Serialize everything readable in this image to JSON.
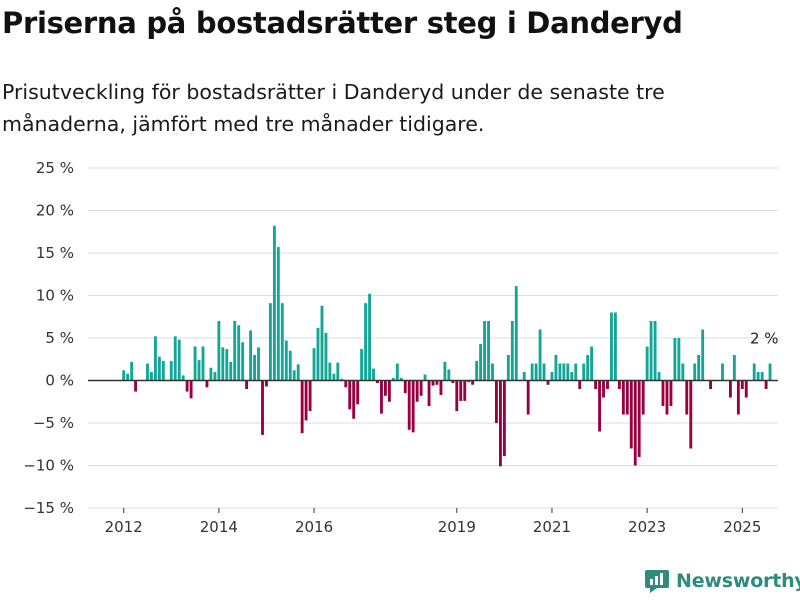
{
  "title": "Priserna på bostadsrätter steg i Danderyd",
  "subtitle": "Prisutveckling för bostadsrätter i Danderyd under de senaste tre månaderna, jämfört med tre månader tidigare.",
  "brand": {
    "name": "Newsworthy",
    "color": "#2e8b7e"
  },
  "colors": {
    "positive": "#13a596",
    "negative": "#98003f",
    "grid": "#dddddd",
    "zero": "#333333"
  },
  "chart_data": {
    "type": "bar",
    "title": "Priserna på bostadsrätter steg i Danderyd",
    "xlabel": "",
    "ylabel": "",
    "ylim": [
      -15,
      25
    ],
    "xlim": [
      2011.25,
      2025.75
    ],
    "y_ticks": [
      -15,
      -10,
      -5,
      0,
      5,
      10,
      15,
      20,
      25
    ],
    "y_tick_labels": [
      "−15 %",
      "−10 %",
      "−5 %",
      "0 %",
      "5 %",
      "10 %",
      "15 %",
      "20 %",
      "25 %"
    ],
    "x_ticks": [
      2012,
      2014,
      2016,
      2019,
      2021,
      2023,
      2025
    ],
    "x_tick_labels": [
      "2012",
      "2014",
      "2016",
      "2019",
      "2021",
      "2023",
      "2025"
    ],
    "annotation": {
      "text": "2 %",
      "x": 2025.42,
      "value": 2
    },
    "series": [
      {
        "name": "Prisutveckling",
        "x": [
          2012.0,
          2012.083,
          2012.167,
          2012.25,
          2012.5,
          2012.583,
          2012.667,
          2012.75,
          2012.833,
          2013.0,
          2013.083,
          2013.167,
          2013.25,
          2013.333,
          2013.417,
          2013.5,
          2013.583,
          2013.667,
          2013.75,
          2013.833,
          2013.917,
          2014.0,
          2014.083,
          2014.167,
          2014.25,
          2014.333,
          2014.417,
          2014.5,
          2014.583,
          2014.667,
          2014.75,
          2014.833,
          2014.917,
          2015.0,
          2015.083,
          2015.167,
          2015.25,
          2015.333,
          2015.417,
          2015.5,
          2015.583,
          2015.667,
          2015.75,
          2015.833,
          2015.917,
          2016.0,
          2016.083,
          2016.167,
          2016.25,
          2016.333,
          2016.417,
          2016.5,
          2016.583,
          2016.667,
          2016.75,
          2016.833,
          2016.917,
          2017.0,
          2017.083,
          2017.167,
          2017.25,
          2017.333,
          2017.417,
          2017.5,
          2017.583,
          2017.667,
          2017.75,
          2017.833,
          2017.917,
          2018.0,
          2018.083,
          2018.167,
          2018.25,
          2018.333,
          2018.417,
          2018.5,
          2018.583,
          2018.667,
          2018.75,
          2018.833,
          2018.917,
          2019.0,
          2019.083,
          2019.167,
          2019.25,
          2019.333,
          2019.417,
          2019.5,
          2019.583,
          2019.667,
          2019.75,
          2019.833,
          2019.917,
          2020.0,
          2020.083,
          2020.167,
          2020.25,
          2020.333,
          2020.417,
          2020.5,
          2020.583,
          2020.667,
          2020.75,
          2020.833,
          2020.917,
          2021.0,
          2021.083,
          2021.167,
          2021.25,
          2021.333,
          2021.417,
          2021.5,
          2021.583,
          2021.667,
          2021.75,
          2021.833,
          2021.917,
          2022.0,
          2022.083,
          2022.167,
          2022.25,
          2022.333,
          2022.417,
          2022.5,
          2022.583,
          2022.667,
          2022.75,
          2022.833,
          2022.917,
          2023.0,
          2023.083,
          2023.167,
          2023.25,
          2023.333,
          2023.417,
          2023.5,
          2023.583,
          2023.667,
          2023.75,
          2023.833,
          2023.917,
          2024.0,
          2024.083,
          2024.167,
          2024.333,
          2024.583,
          2024.75,
          2024.833,
          2024.917,
          2025.0,
          2025.083,
          2025.25,
          2025.333,
          2025.417,
          2025.5,
          2025.583
        ],
        "values": [
          1.2,
          0.8,
          2.2,
          -1.3,
          2.0,
          1.0,
          5.2,
          2.8,
          2.3,
          2.3,
          5.2,
          4.8,
          0.6,
          -1.3,
          -2.1,
          4.0,
          2.4,
          4.0,
          -0.8,
          1.5,
          1.0,
          7.0,
          3.9,
          3.7,
          2.2,
          7.0,
          6.5,
          4.5,
          -1.0,
          5.9,
          3.0,
          3.9,
          -6.4,
          -0.7,
          9.1,
          18.2,
          15.7,
          9.1,
          4.7,
          3.5,
          1.2,
          1.9,
          -6.2,
          -4.7,
          -3.6,
          3.8,
          6.2,
          8.8,
          5.6,
          2.1,
          0.8,
          2.1,
          0.2,
          -0.8,
          -3.4,
          -4.5,
          -2.8,
          3.7,
          9.1,
          10.2,
          1.4,
          -0.3,
          -3.9,
          -1.8,
          -2.5,
          0.3,
          2.0,
          0.3,
          -1.5,
          -5.8,
          -6.1,
          -2.5,
          -1.8,
          0.7,
          -3.0,
          -0.6,
          -0.5,
          -1.7,
          2.2,
          1.3,
          -0.3,
          -3.6,
          -2.4,
          -2.4,
          -0.2,
          -0.5,
          2.3,
          4.3,
          7.0,
          7.0,
          2.0,
          -5.0,
          -10.1,
          -8.9,
          3.0,
          7.0,
          11.1,
          0.1,
          1.0,
          -4.0,
          2.0,
          2.0,
          6.0,
          2.0,
          -0.5,
          1.0,
          3.0,
          2.0,
          2.0,
          2.0,
          1.0,
          2.0,
          -1.0,
          2.0,
          3.0,
          4.0,
          -1.0,
          -6.0,
          -2.0,
          -1.0,
          8.0,
          8.0,
          -1.0,
          -4.0,
          -4.0,
          -8.0,
          -10.0,
          -9.0,
          -4.0,
          4.0,
          7.0,
          7.0,
          1.0,
          -3.0,
          -4.0,
          -3.0,
          5.0,
          5.0,
          2.0,
          -4.0,
          -8.0,
          2.0,
          3.0,
          6.0,
          -1.0,
          2.0,
          -2.0,
          3.0,
          -4.0,
          -1.0,
          -2.0,
          2.0,
          1.0,
          1.0,
          -1.0,
          2.0
        ]
      }
    ]
  }
}
